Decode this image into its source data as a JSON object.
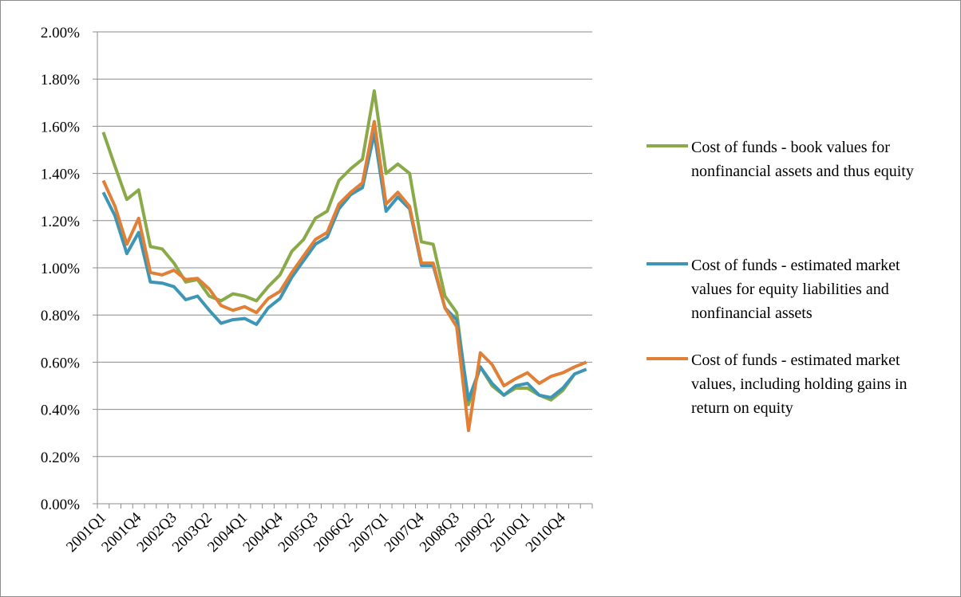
{
  "chart_data": {
    "type": "line",
    "categories": [
      "2001Q1",
      null,
      null,
      "2001Q4",
      null,
      null,
      "2002Q3",
      null,
      null,
      "2003Q2",
      null,
      null,
      "2004Q1",
      null,
      null,
      "2004Q4",
      null,
      null,
      "2005Q3",
      null,
      null,
      "2006Q2",
      null,
      null,
      "2007Q1",
      null,
      null,
      "2007Q4",
      null,
      null,
      "2008Q3",
      null,
      null,
      "2009Q2",
      null,
      null,
      "2010Q1",
      null,
      null,
      "2010Q4",
      null,
      null
    ],
    "series": [
      {
        "name": "Cost of funds - book values for nonfinancial assets and thus equity",
        "color": "#8aaa4a",
        "values": [
          1.575,
          1.43,
          1.29,
          1.33,
          1.09,
          1.08,
          1.02,
          0.94,
          0.95,
          0.88,
          0.86,
          0.89,
          0.88,
          0.86,
          0.92,
          0.97,
          1.07,
          1.12,
          1.21,
          1.24,
          1.37,
          1.42,
          1.46,
          1.75,
          1.4,
          1.44,
          1.4,
          1.11,
          1.1,
          0.88,
          0.81,
          0.42,
          0.58,
          0.5,
          0.46,
          0.49,
          0.49,
          0.46,
          0.44,
          0.48,
          0.55,
          0.57
        ]
      },
      {
        "name": "Cost of funds - estimated market values for equity liabilities and nonfinancial assets",
        "color": "#3d96b5",
        "values": [
          1.32,
          1.22,
          1.06,
          1.15,
          0.94,
          0.935,
          0.92,
          0.865,
          0.88,
          0.82,
          0.765,
          0.78,
          0.785,
          0.76,
          0.83,
          0.87,
          0.96,
          1.03,
          1.1,
          1.13,
          1.25,
          1.31,
          1.34,
          1.57,
          1.24,
          1.3,
          1.25,
          1.01,
          1.01,
          0.83,
          0.78,
          0.44,
          0.58,
          0.51,
          0.46,
          0.5,
          0.51,
          0.46,
          0.45,
          0.49,
          0.55,
          0.57
        ]
      },
      {
        "name": "Cost of funds - estimated market values, including holding gains in return on equity",
        "color": "#e07f35",
        "values": [
          1.37,
          1.26,
          1.1,
          1.21,
          0.98,
          0.97,
          0.99,
          0.95,
          0.955,
          0.91,
          0.84,
          0.82,
          0.835,
          0.81,
          0.87,
          0.9,
          0.98,
          1.05,
          1.12,
          1.15,
          1.27,
          1.32,
          1.36,
          1.62,
          1.27,
          1.32,
          1.26,
          1.02,
          1.02,
          0.83,
          0.75,
          0.31,
          0.64,
          0.59,
          0.5,
          0.53,
          0.555,
          0.51,
          0.54,
          0.555,
          0.58,
          0.6
        ]
      }
    ],
    "ylim": [
      0,
      2
    ],
    "yticks": [
      {
        "value": 0,
        "label": "0.00%"
      },
      {
        "value": 0.2,
        "label": "0.20%"
      },
      {
        "value": 0.4,
        "label": "0.40%"
      },
      {
        "value": 0.6,
        "label": "0.60%"
      },
      {
        "value": 0.8,
        "label": "0.80%"
      },
      {
        "value": 1,
        "label": "1.00%"
      },
      {
        "value": 1.2,
        "label": "1.20%"
      },
      {
        "value": 1.4,
        "label": "1.40%"
      },
      {
        "value": 1.6,
        "label": "1.60%"
      },
      {
        "value": 1.8,
        "label": "1.80%"
      },
      {
        "value": 2,
        "label": "2.00%"
      }
    ],
    "grid": true,
    "legend": "right"
  }
}
